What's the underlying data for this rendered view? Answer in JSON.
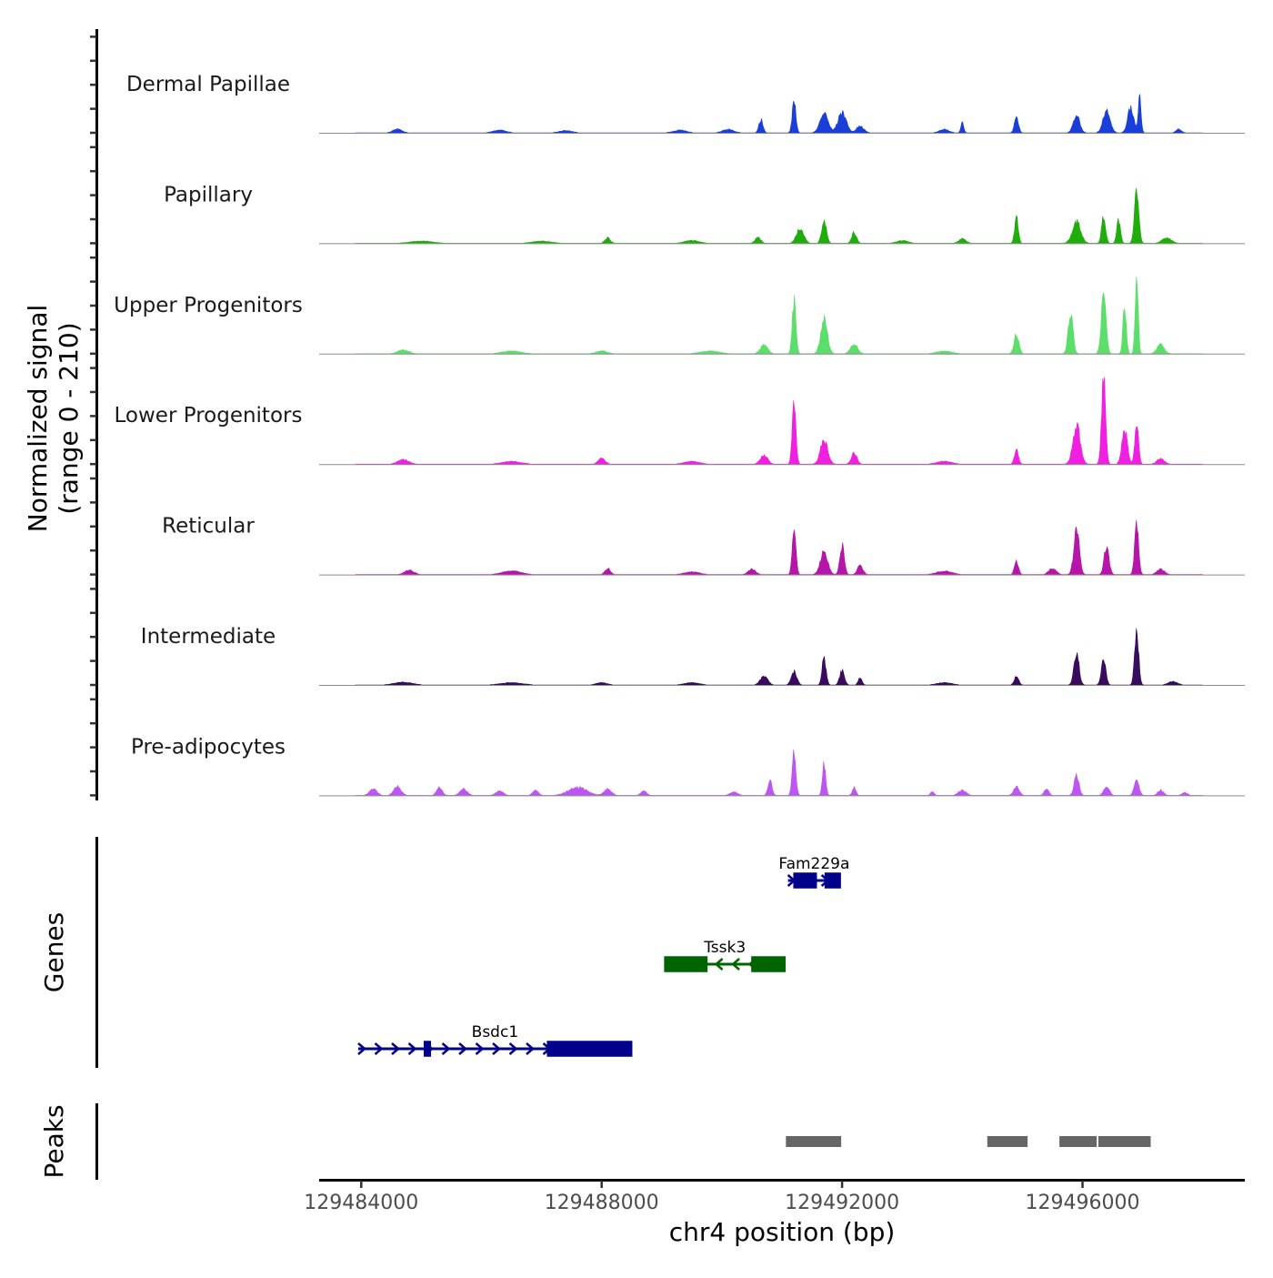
{
  "chart_data": {
    "type": "area",
    "title": "",
    "chromosome": "chr4",
    "xlabel": "chr4 position (bp)",
    "ylabel_line1": "Normalized signal",
    "ylabel_line2": "(range 0 - 210)",
    "xlim": [
      129483300,
      129498700
    ],
    "ylim": [
      0,
      210
    ],
    "x_ticks": [
      129484000,
      129488000,
      129492000,
      129496000
    ],
    "x_tick_labels": [
      "129484000",
      "129488000",
      "129492000",
      "129496000"
    ],
    "genes_label": "Genes",
    "peaks_label": "Peaks",
    "tracks": [
      {
        "name": "Dermal Papillae",
        "color": "#1a3fd9",
        "peaks": [
          {
            "center": 129484600,
            "height": 8,
            "width": 250
          },
          {
            "center": 129486300,
            "height": 6,
            "width": 350
          },
          {
            "center": 129487400,
            "height": 5,
            "width": 350
          },
          {
            "center": 129489300,
            "height": 6,
            "width": 350
          },
          {
            "center": 129490100,
            "height": 8,
            "width": 300
          },
          {
            "center": 129490650,
            "height": 30,
            "width": 110
          },
          {
            "center": 129491200,
            "height": 70,
            "width": 100
          },
          {
            "center": 129491700,
            "height": 48,
            "width": 220
          },
          {
            "center": 129492000,
            "height": 44,
            "width": 230
          },
          {
            "center": 129492300,
            "height": 15,
            "width": 200
          },
          {
            "center": 129493700,
            "height": 8,
            "width": 250
          },
          {
            "center": 129494000,
            "height": 22,
            "width": 80
          },
          {
            "center": 129494900,
            "height": 38,
            "width": 110
          },
          {
            "center": 129495900,
            "height": 38,
            "width": 180
          },
          {
            "center": 129496400,
            "height": 48,
            "width": 200
          },
          {
            "center": 129496800,
            "height": 55,
            "width": 170
          },
          {
            "center": 129496950,
            "height": 82,
            "width": 80
          },
          {
            "center": 129497600,
            "height": 8,
            "width": 150
          }
        ]
      },
      {
        "name": "Papillary",
        "color": "#1ead0a",
        "peaks": [
          {
            "center": 129485000,
            "height": 5,
            "width": 600
          },
          {
            "center": 129487000,
            "height": 5,
            "width": 500
          },
          {
            "center": 129488100,
            "height": 12,
            "width": 150
          },
          {
            "center": 129489500,
            "height": 6,
            "width": 400
          },
          {
            "center": 129490600,
            "height": 14,
            "width": 150
          },
          {
            "center": 129491300,
            "height": 32,
            "width": 200
          },
          {
            "center": 129491700,
            "height": 52,
            "width": 130
          },
          {
            "center": 129492200,
            "height": 24,
            "width": 130
          },
          {
            "center": 129493000,
            "height": 6,
            "width": 300
          },
          {
            "center": 129494000,
            "height": 10,
            "width": 200
          },
          {
            "center": 129494900,
            "height": 58,
            "width": 100
          },
          {
            "center": 129495900,
            "height": 48,
            "width": 230
          },
          {
            "center": 129496350,
            "height": 60,
            "width": 110
          },
          {
            "center": 129496600,
            "height": 52,
            "width": 100
          },
          {
            "center": 129496900,
            "height": 122,
            "width": 120
          },
          {
            "center": 129497400,
            "height": 12,
            "width": 250
          }
        ]
      },
      {
        "name": "Upper Progenitors",
        "color": "#5cde6a",
        "peaks": [
          {
            "center": 129484700,
            "height": 8,
            "width": 300
          },
          {
            "center": 129486500,
            "height": 6,
            "width": 500
          },
          {
            "center": 129488000,
            "height": 6,
            "width": 300
          },
          {
            "center": 129489800,
            "height": 6,
            "width": 500
          },
          {
            "center": 129490700,
            "height": 20,
            "width": 200
          },
          {
            "center": 129491200,
            "height": 118,
            "width": 100
          },
          {
            "center": 129491700,
            "height": 78,
            "width": 180
          },
          {
            "center": 129492200,
            "height": 20,
            "width": 200
          },
          {
            "center": 129493700,
            "height": 6,
            "width": 400
          },
          {
            "center": 129494900,
            "height": 44,
            "width": 130
          },
          {
            "center": 129495800,
            "height": 92,
            "width": 130
          },
          {
            "center": 129496350,
            "height": 130,
            "width": 130
          },
          {
            "center": 129496700,
            "height": 112,
            "width": 90
          },
          {
            "center": 129496900,
            "height": 185,
            "width": 80
          },
          {
            "center": 129497300,
            "height": 20,
            "width": 200
          }
        ]
      },
      {
        "name": "Lower Progenitors",
        "color": "#f020e0",
        "peaks": [
          {
            "center": 129484700,
            "height": 10,
            "width": 300
          },
          {
            "center": 129486500,
            "height": 6,
            "width": 500
          },
          {
            "center": 129488000,
            "height": 14,
            "width": 180
          },
          {
            "center": 129489500,
            "height": 6,
            "width": 400
          },
          {
            "center": 129490700,
            "height": 20,
            "width": 200
          },
          {
            "center": 129491200,
            "height": 138,
            "width": 100
          },
          {
            "center": 129491700,
            "height": 55,
            "width": 200
          },
          {
            "center": 129492200,
            "height": 25,
            "width": 150
          },
          {
            "center": 129493700,
            "height": 6,
            "width": 400
          },
          {
            "center": 129494900,
            "height": 34,
            "width": 110
          },
          {
            "center": 129495900,
            "height": 85,
            "width": 200
          },
          {
            "center": 129496350,
            "height": 200,
            "width": 110
          },
          {
            "center": 129496700,
            "height": 80,
            "width": 150
          },
          {
            "center": 129496900,
            "height": 95,
            "width": 100
          },
          {
            "center": 129497300,
            "height": 12,
            "width": 200
          }
        ]
      },
      {
        "name": "Reticular",
        "color": "#b515a8",
        "peaks": [
          {
            "center": 129484800,
            "height": 10,
            "width": 250
          },
          {
            "center": 129486500,
            "height": 8,
            "width": 500
          },
          {
            "center": 129488100,
            "height": 14,
            "width": 150
          },
          {
            "center": 129489500,
            "height": 6,
            "width": 400
          },
          {
            "center": 129490500,
            "height": 12,
            "width": 200
          },
          {
            "center": 129491200,
            "height": 100,
            "width": 100
          },
          {
            "center": 129491700,
            "height": 52,
            "width": 200
          },
          {
            "center": 129492000,
            "height": 65,
            "width": 120
          },
          {
            "center": 129492300,
            "height": 20,
            "width": 150
          },
          {
            "center": 129493700,
            "height": 8,
            "width": 400
          },
          {
            "center": 129494900,
            "height": 30,
            "width": 110
          },
          {
            "center": 129495500,
            "height": 14,
            "width": 200
          },
          {
            "center": 129495900,
            "height": 100,
            "width": 150
          },
          {
            "center": 129496400,
            "height": 65,
            "width": 130
          },
          {
            "center": 129496900,
            "height": 108,
            "width": 110
          },
          {
            "center": 129497300,
            "height": 12,
            "width": 200
          }
        ]
      },
      {
        "name": "Intermediate",
        "color": "#380b5e",
        "peaks": [
          {
            "center": 129484700,
            "height": 6,
            "width": 500
          },
          {
            "center": 129486500,
            "height": 5,
            "width": 600
          },
          {
            "center": 129488000,
            "height": 5,
            "width": 300
          },
          {
            "center": 129489500,
            "height": 5,
            "width": 400
          },
          {
            "center": 129490700,
            "height": 20,
            "width": 200
          },
          {
            "center": 129491200,
            "height": 30,
            "width": 150
          },
          {
            "center": 129491700,
            "height": 60,
            "width": 110
          },
          {
            "center": 129492000,
            "height": 32,
            "width": 130
          },
          {
            "center": 129492300,
            "height": 18,
            "width": 100
          },
          {
            "center": 129493700,
            "height": 5,
            "width": 400
          },
          {
            "center": 129494900,
            "height": 20,
            "width": 120
          },
          {
            "center": 129495900,
            "height": 70,
            "width": 140
          },
          {
            "center": 129496350,
            "height": 60,
            "width": 120
          },
          {
            "center": 129496900,
            "height": 120,
            "width": 110
          },
          {
            "center": 129497500,
            "height": 8,
            "width": 250
          }
        ]
      },
      {
        "name": "Pre-adipocytes",
        "color": "#bd55f2",
        "peaks": [
          {
            "center": 129484200,
            "height": 14,
            "width": 200
          },
          {
            "center": 129484600,
            "height": 20,
            "width": 200
          },
          {
            "center": 129485300,
            "height": 18,
            "width": 150
          },
          {
            "center": 129485700,
            "height": 14,
            "width": 200
          },
          {
            "center": 129486300,
            "height": 10,
            "width": 200
          },
          {
            "center": 129486900,
            "height": 12,
            "width": 150
          },
          {
            "center": 129487600,
            "height": 18,
            "width": 500
          },
          {
            "center": 129488100,
            "height": 14,
            "width": 200
          },
          {
            "center": 129488700,
            "height": 10,
            "width": 150
          },
          {
            "center": 129490200,
            "height": 8,
            "width": 200
          },
          {
            "center": 129490800,
            "height": 32,
            "width": 110
          },
          {
            "center": 129491200,
            "height": 98,
            "width": 100
          },
          {
            "center": 129491700,
            "height": 75,
            "width": 90
          },
          {
            "center": 129492200,
            "height": 18,
            "width": 100
          },
          {
            "center": 129493500,
            "height": 8,
            "width": 100
          },
          {
            "center": 129494000,
            "height": 12,
            "width": 200
          },
          {
            "center": 129494900,
            "height": 20,
            "width": 150
          },
          {
            "center": 129495400,
            "height": 16,
            "width": 120
          },
          {
            "center": 129495900,
            "height": 45,
            "width": 130
          },
          {
            "center": 129496400,
            "height": 20,
            "width": 150
          },
          {
            "center": 129496900,
            "height": 35,
            "width": 130
          },
          {
            "center": 129497300,
            "height": 12,
            "width": 150
          },
          {
            "center": 129497700,
            "height": 6,
            "width": 150
          }
        ]
      }
    ],
    "genes": [
      {
        "name": "Fam229a",
        "strand": "+",
        "color": "#00008b",
        "start": 129491100,
        "end": 129491970,
        "row": 1,
        "exons": [
          [
            129491200,
            129491570
          ],
          [
            129491720,
            129491970
          ]
        ]
      },
      {
        "name": "Tssk3",
        "strand": "-",
        "color": "#006400",
        "start": 129489050,
        "end": 129491050,
        "row": 2,
        "exons": [
          [
            129489050,
            129489750
          ],
          [
            129490500,
            129491050
          ]
        ]
      },
      {
        "name": "Bsdc1",
        "strand": "+",
        "color": "#00008b",
        "start": 129483950,
        "end": 129488500,
        "row": 3,
        "exons": [
          [
            129485050,
            129485150
          ],
          [
            129487100,
            129488500
          ]
        ]
      }
    ],
    "peak_regions": [
      {
        "start": 129491050,
        "end": 129492000
      },
      {
        "start": 129494400,
        "end": 129495100
      },
      {
        "start": 129495600,
        "end": 129496250
      },
      {
        "start": 129496250,
        "end": 129497150
      }
    ]
  }
}
